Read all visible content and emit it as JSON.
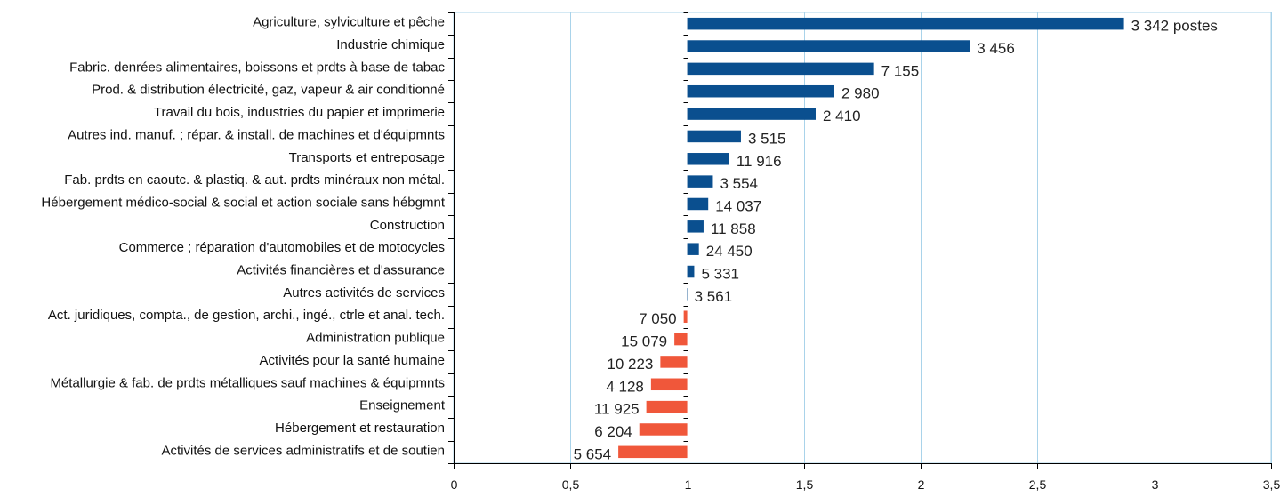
{
  "chart_data": {
    "type": "bar",
    "orientation": "horizontal",
    "categories": [
      "Agriculture, sylviculture et pêche",
      "Industrie chimique",
      "Fabric. denrées alimentaires, boissons et prdts à base de tabac",
      "Prod. & distribution électricité, gaz, vapeur & air conditionné",
      "Travail du bois, industries du papier et imprimerie",
      "Autres ind. manuf. ; répar. & install. de machines et d'équipmnts",
      "Transports et entreposage",
      "Fab. prdts en caoutc. & plastiq. & aut. prdts minéraux non métal.",
      "Hébergement médico-social & social et action sociale sans hébgmnt",
      "Construction",
      "Commerce ; réparation d'automobiles et de motocycles",
      "Activités financières et d'assurance",
      "Autres activités de services",
      "Act. juridiques, compta., de gestion, archi., ingé., ctrle et anal. tech.",
      "Administration publique",
      "Activités pour la santé humaine",
      "Métallurgie & fab. de prdts métalliques sauf machines & équipmnts",
      "Enseignement",
      "Hébergement et restauration",
      "Activités de services administratifs et de soutien"
    ],
    "values": [
      2.87,
      2.21,
      1.8,
      1.63,
      1.55,
      1.23,
      1.18,
      1.11,
      1.09,
      1.07,
      1.05,
      1.03,
      1.0,
      0.985,
      0.945,
      0.885,
      0.845,
      0.825,
      0.795,
      0.705
    ],
    "data_labels": [
      "3 342 postes",
      "3 456",
      "7 155",
      "2 980",
      "2 410",
      "3 515",
      "11 916",
      "3 554",
      "14 037",
      "11 858",
      "24 450",
      "5 331",
      "3 561",
      "7 050",
      "15 079",
      "10 223",
      "4 128",
      "11 925",
      "6 204",
      "5 654"
    ],
    "baseline": 1,
    "xlim": [
      0,
      3.5
    ],
    "xticks": [
      0,
      0.5,
      1,
      1.5,
      2,
      2.5,
      3,
      3.5
    ],
    "xtick_labels": [
      "0",
      "0,5",
      "1",
      "1,5",
      "2",
      "2,5",
      "3",
      "3,5"
    ],
    "colors": {
      "above": "#0a4f8f",
      "below": "#f0573a",
      "grid": "#a9d3ea"
    },
    "grid": true,
    "title": "",
    "xlabel": "",
    "ylabel": ""
  }
}
